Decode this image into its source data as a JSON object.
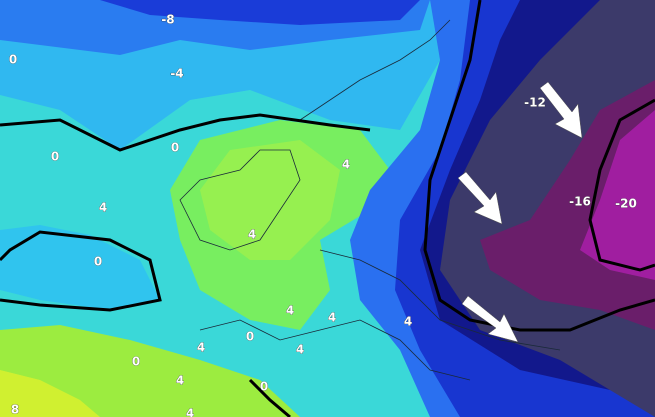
{
  "map": {
    "contour_labels": [
      "-8",
      "0",
      "-4",
      "-12",
      "0",
      "0",
      "4",
      "-16",
      "-20",
      "4",
      "4",
      "0",
      "4",
      "4",
      "4",
      "0",
      "4",
      "4",
      "0",
      "4",
      "0",
      "8",
      "4"
    ]
  }
}
